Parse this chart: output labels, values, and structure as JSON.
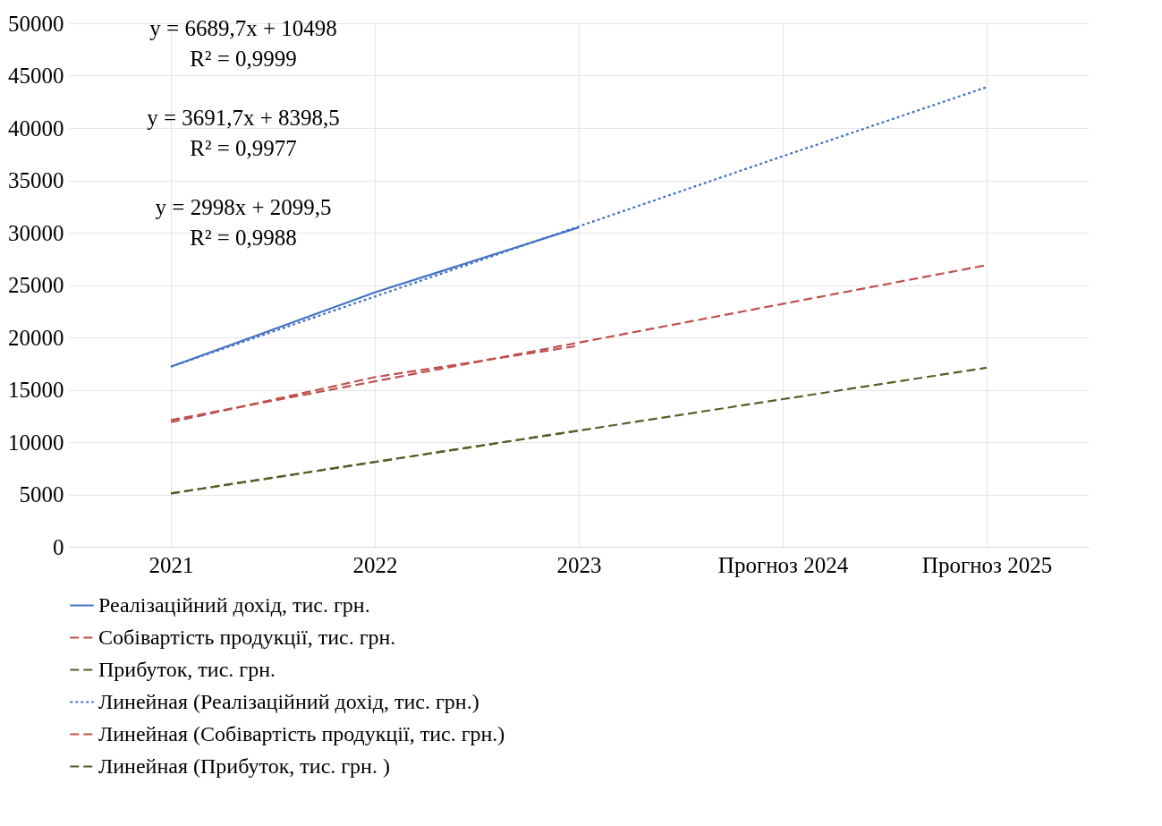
{
  "chart_data": {
    "type": "line",
    "categories": [
      "2021",
      "2022",
      "2023",
      "Прогноз 2024",
      "Прогноз 2025"
    ],
    "series": [
      {
        "name": "Реалізаційний дохід, тис. грн.",
        "color": "#4472c4",
        "line_style": "solid",
        "values": [
          17200,
          24300,
          30500,
          null,
          null
        ]
      },
      {
        "name": "Собівартість продукції, тис. грн.",
        "color": "#c0504d",
        "line_style": "dashed",
        "values": [
          11900,
          16200,
          19200,
          null,
          null
        ]
      },
      {
        "name": "Прибуток, тис. грн.",
        "color": "#4f6228",
        "line_style": "dashed",
        "values": [
          5100,
          8100,
          11100,
          null,
          null
        ]
      },
      {
        "name": "Линейная (Реалізаційний дохід, тис. грн.)",
        "color": "#4472c4",
        "line_style": "dotted",
        "values": [
          17200,
          23900,
          30600,
          37300,
          43900
        ]
      },
      {
        "name": "Линейная (Собівартість продукції, тис. грн.)",
        "color": "#c0504d",
        "line_style": "dashed",
        "values": [
          12100,
          15800,
          19500,
          23200,
          26900
        ]
      },
      {
        "name": "Линейная (Прибуток, тис. грн. )",
        "color": "#4f6228",
        "line_style": "dashed",
        "values": [
          5100,
          8100,
          11100,
          14100,
          17100
        ]
      }
    ],
    "ylim": [
      0,
      50000
    ],
    "yticks": [
      0,
      5000,
      10000,
      15000,
      20000,
      25000,
      30000,
      35000,
      40000,
      45000,
      50000
    ],
    "grid": true,
    "legend": "bottom",
    "marker": "none",
    "annotations": [
      "y = 6689,7x + 10498",
      "R² = 0,9999",
      "y = 3691,7x + 8398,5",
      "R² = 0,9977",
      "y = 2998x + 2099,5",
      "R² = 0,9988"
    ]
  }
}
